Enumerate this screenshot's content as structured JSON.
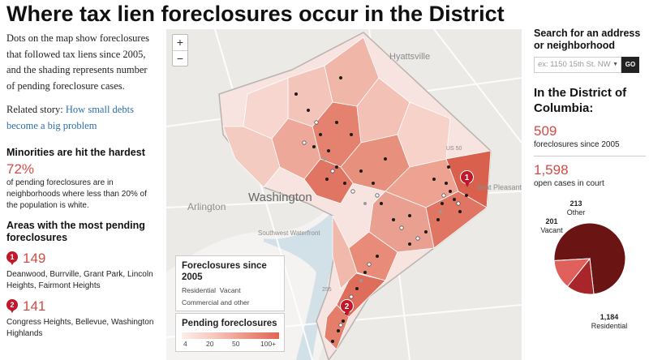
{
  "title": "Where tax lien foreclosures occur in the District",
  "intro": "Dots on the map show foreclosures that followed tax liens since 2005, and the shading represents number of pending foreclosure cases.",
  "related": {
    "label": "Related story:",
    "link": "How small debts become a big problem"
  },
  "minorities": {
    "heading": "Minorities are hit the hardest",
    "value": "72%",
    "text": "of pending foreclosures are in neighborhoods where less than 20% of the population is white."
  },
  "areas": {
    "heading": "Areas with the most pending foreclosures",
    "items": [
      {
        "rank": "1",
        "count": "149",
        "names": "Deanwood, Burrville, Grant Park, Lincoln Heights, Fairmont Heights"
      },
      {
        "rank": "2",
        "count": "141",
        "names": "Congress Heights, Bellevue, Washington Highlands"
      }
    ]
  },
  "map": {
    "zoom_in": "+",
    "zoom_out": "−",
    "labels": {
      "washington": "Washington",
      "arlington": "Arlington",
      "hyattsville": "Hyattsville",
      "southwest": "Southwest Waterfront",
      "seat_pleasant": "Seat Pleasant",
      "route_50": "US 50",
      "route_295": "295"
    },
    "pins": [
      "1",
      "2"
    ],
    "legend_foreclosures": {
      "title": "Foreclosures since 2005",
      "types": [
        "Residential",
        "Vacant"
      ],
      "types2": "Commercial and other"
    },
    "legend_pending": {
      "title": "Pending foreclosures",
      "ticks": [
        "4",
        "20",
        "50",
        "100+"
      ]
    }
  },
  "search": {
    "heading": "Search for an address or neighborhood",
    "placeholder": "ex: 1150 15th St. NW",
    "button": "GO"
  },
  "district": {
    "heading": "In the District of Columbia:",
    "foreclosures_value": "509",
    "foreclosures_text": "foreclosures since 2005",
    "cases_value": "1,598",
    "cases_text": "open cases in court"
  },
  "chart_data": {
    "type": "pie",
    "slices": [
      {
        "label": "Residential",
        "value": 1184,
        "color": "#6b1414"
      },
      {
        "label": "Vacant",
        "value": 201,
        "color": "#a8262a"
      },
      {
        "label": "Other",
        "value": 213,
        "color": "#e0605c"
      }
    ],
    "value_labels": [
      "1,184",
      "201",
      "213"
    ]
  }
}
